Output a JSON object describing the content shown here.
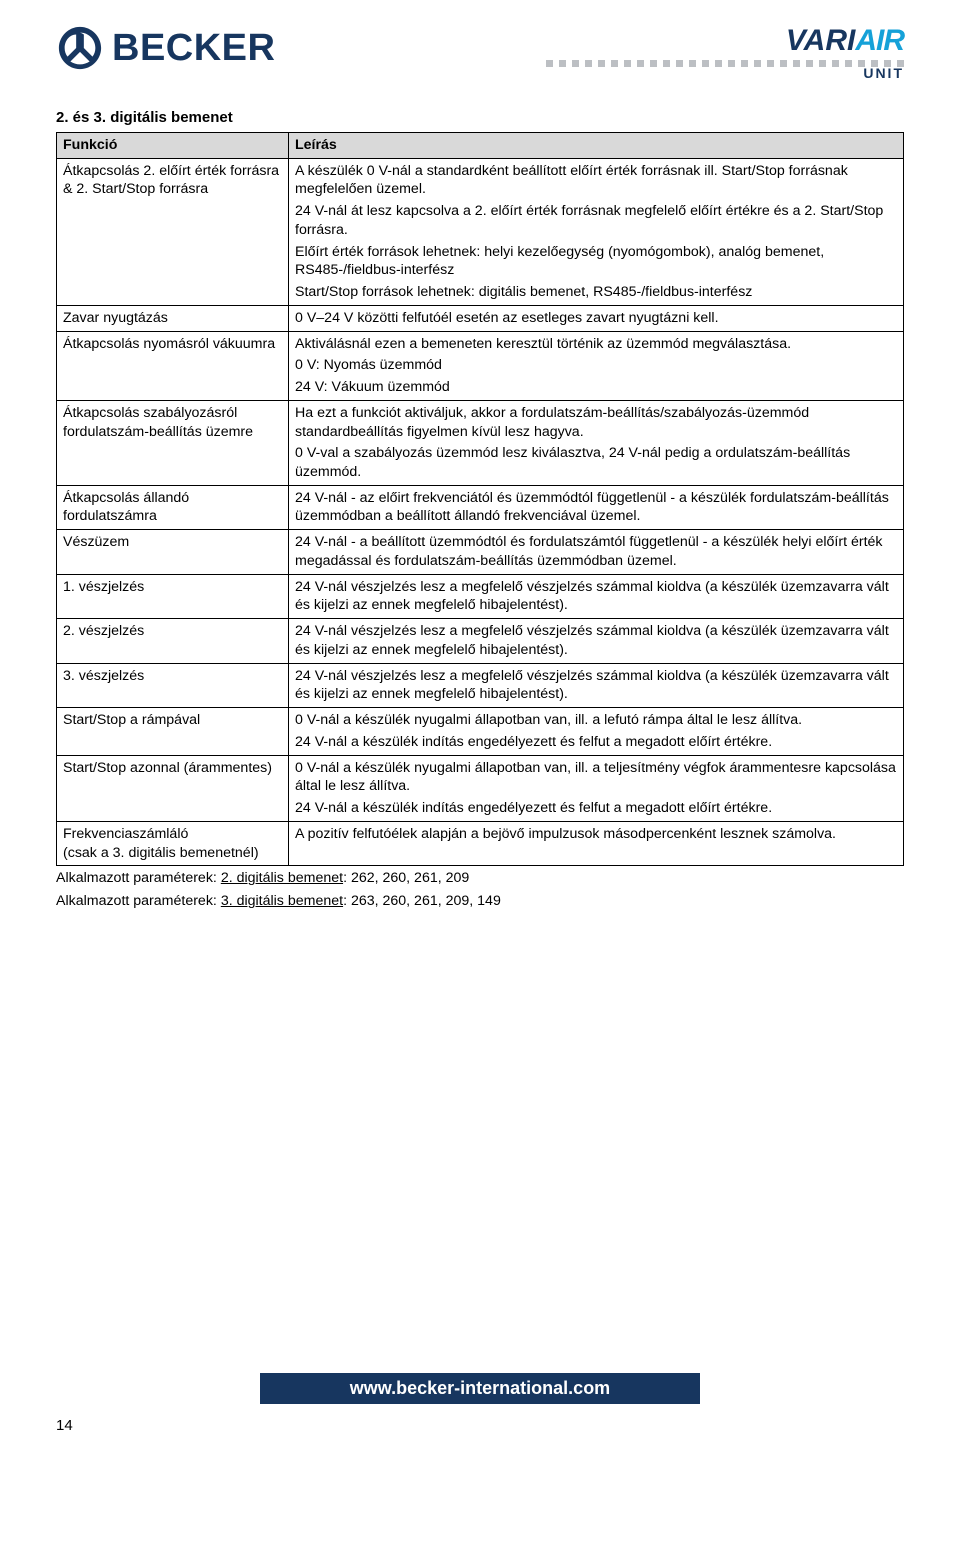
{
  "brand": {
    "becker": "BECKER",
    "variair_vari": "VARI",
    "variair_air": "AIR",
    "variair_unit": "UNIT"
  },
  "section_title": "2. és 3. digitális bemenet",
  "table_headers": {
    "c0": "Funkció",
    "c1": "Leírás"
  },
  "rows": [
    {
      "k": "Átkapcsolás 2. előírt érték forrásra & 2. Start/Stop forrásra",
      "v": [
        "A készülék 0 V-nál a standardként beállított előírt érték forrásnak ill. Start/Stop forrásnak megfelelően üzemel.",
        "24 V-nál át lesz kapcsolva a 2. előírt érték forrásnak megfelelő előírt értékre és a 2. Start/Stop forrásra.",
        "Előírt érték források lehetnek: helyi kezelőegység (nyomógombok), analóg bemenet, RS485-/fieldbus-interfész",
        "Start/Stop források lehetnek: digitális bemenet, RS485-/fieldbus-interfész"
      ]
    },
    {
      "k": "Zavar nyugtázás",
      "v": [
        "0 V–24 V közötti felfutóél esetén az esetleges zavart nyugtázni kell."
      ]
    },
    {
      "k": "Átkapcsolás nyomásról vákuumra",
      "v": [
        "Aktiválásnál ezen a bemeneten keresztül történik az üzemmód megválasztása.",
        "0 V: Nyomás üzemmód",
        "24 V: Vákuum üzemmód"
      ]
    },
    {
      "k": "Átkapcsolás szabályozásról fordulatszám-beállítás üzemre",
      "v": [
        "Ha ezt a funkciót aktiváljuk, akkor a fordulatszám-beállítás/szabályozás-üzemmód standardbeállítás figyelmen kívül lesz hagyva.",
        "0 V-val a szabályozás üzemmód lesz kiválasztva, 24 V-nál pedig a ordulatszám-beállítás üzemmód."
      ]
    },
    {
      "k": "Átkapcsolás állandó fordulatszámra",
      "v": [
        "24 V-nál - az előirt frekvenciától és üzemmódtól függetlenül - a készülék fordulatszám-beállítás üzemmódban a beállított állandó frekvenciával üzemel."
      ]
    },
    {
      "k": "Vészüzem",
      "v": [
        "24 V-nál - a beállított üzemmódtól és fordulatszámtól függetlenül - a készülék helyi előírt érték megadással és fordulatszám-beállítás üzemmódban üzemel."
      ]
    },
    {
      "k": "1. vészjelzés",
      "v": [
        "24 V-nál vészjelzés lesz a megfelelő vészjelzés számmal kioldva (a készülék üzemzavarra vált és kijelzi az ennek megfelelő hibajelentést)."
      ]
    },
    {
      "k": "2. vészjelzés",
      "v": [
        "24 V-nál vészjelzés lesz a megfelelő vészjelzés számmal kioldva (a készülék üzemzavarra vált és kijelzi az ennek megfelelő hibajelentést)."
      ]
    },
    {
      "k": "3. vészjelzés",
      "v": [
        "24 V-nál vészjelzés lesz a megfelelő vészjelzés számmal kioldva (a készülék üzemzavarra vált és kijelzi az ennek megfelelő hibajelentést)."
      ]
    },
    {
      "k": "Start/Stop a rámpával",
      "v": [
        "0 V-nál a készülék nyugalmi állapotban van, ill. a lefutó rámpa által le lesz állítva.",
        "24 V-nál a készülék indítás engedélyezett és felfut a megadott előírt értékre."
      ]
    },
    {
      "k": "Start/Stop azonnal (árammentes)",
      "v": [
        "0 V-nál a készülék nyugalmi állapotban van, ill. a teljesítmény végfok árammentesre kapcsolása által le lesz állítva.",
        "24 V-nál a készülék indítás engedélyezett és felfut a megadott előírt értékre."
      ]
    },
    {
      "k": "Frekvenciaszámláló\n(csak a 3. digitális bemenetnél)",
      "v": [
        "A pozitív felfutóélek alapján a bejövő impulzusok másodpercenként lesznek számolva."
      ]
    }
  ],
  "applied_params": {
    "l1_pre": "Alkalmazott paraméterek: ",
    "l1_u": "2. digitális bemenet",
    "l1_post": ": 262, 260, 261, 209",
    "l2_pre": "Alkalmazott paraméterek: ",
    "l2_u": "3. digitális bemenet",
    "l2_post": ": 263, 260, 261, 209, 149"
  },
  "footer_url": "www.becker-international.com",
  "page_number": "14",
  "colors": {
    "header_bg": "#d9d9d9",
    "border": "#000000",
    "brand_dark": "#17365f",
    "brand_light": "#15a1d8",
    "dot": "#bcbfc3"
  }
}
